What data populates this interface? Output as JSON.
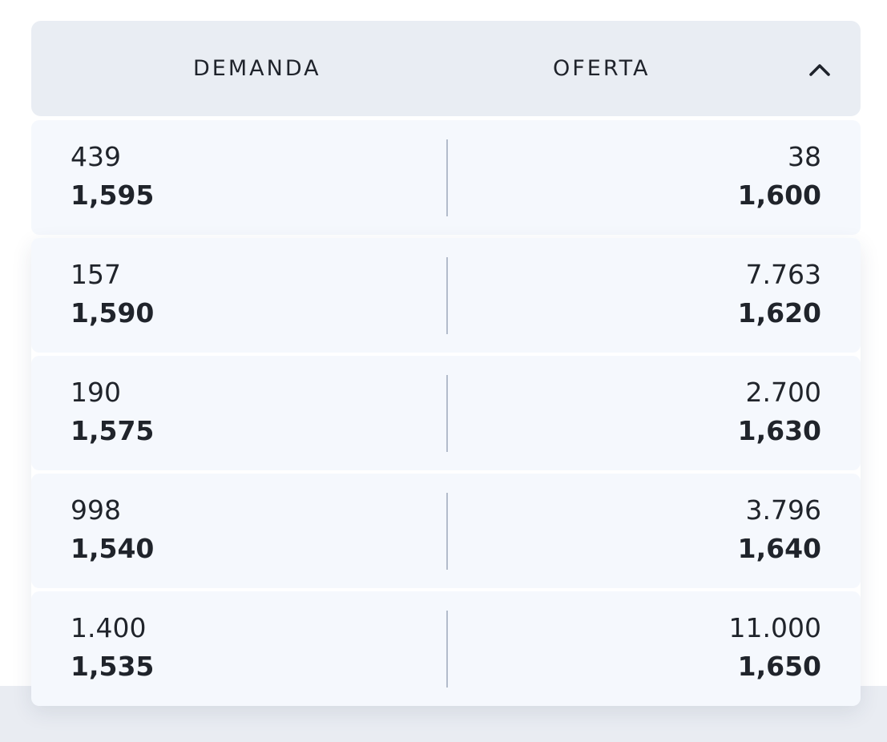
{
  "header": {
    "demand_label": "DEMANDA",
    "offer_label": "OFERTA",
    "toggle_icon": "chevron-up-icon"
  },
  "rows": [
    {
      "bid_qty": "439",
      "bid_price": "1,595",
      "ask_qty": "38",
      "ask_price": "1,600"
    },
    {
      "bid_qty": "157",
      "bid_price": "1,590",
      "ask_qty": "7.763",
      "ask_price": "1,620"
    },
    {
      "bid_qty": "190",
      "bid_price": "1,575",
      "ask_qty": "2.700",
      "ask_price": "1,630"
    },
    {
      "bid_qty": "998",
      "bid_price": "1,540",
      "ask_qty": "3.796",
      "ask_price": "1,640"
    },
    {
      "bid_qty": "1.400",
      "bid_price": "1,535",
      "ask_qty": "11.000",
      "ask_price": "1,650"
    }
  ],
  "colors": {
    "header_bg": "#e9edf3",
    "row_bg": "#f5f8fd",
    "divider": "#b3bccb",
    "text": "#1f232b"
  }
}
